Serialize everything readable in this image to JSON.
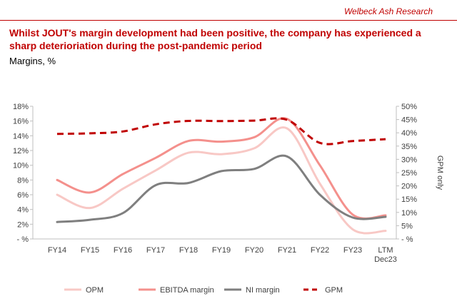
{
  "header": {
    "brand": "Welbeck Ash Research"
  },
  "headline": "Whilst JOUT's margin development had been positive, the company has experienced a sharp deterioriation during the post-pandemic period",
  "subheading": "Margins, %",
  "chart_data": {
    "type": "line",
    "title": "",
    "xlabel": "",
    "ylabel": "",
    "y2label": "GPM only",
    "categories": [
      "FY14",
      "FY15",
      "FY16",
      "FY17",
      "FY18",
      "FY19",
      "FY20",
      "FY21",
      "FY22",
      "FY23",
      "LTM Dec23"
    ],
    "ylim": [
      0,
      18
    ],
    "y2lim": [
      0,
      50
    ],
    "y_ticks": [
      0,
      2,
      4,
      6,
      8,
      10,
      12,
      14,
      16,
      18
    ],
    "y_tick_labels": [
      "- %",
      "2%",
      "4%",
      "6%",
      "8%",
      "10%",
      "12%",
      "14%",
      "16%",
      "18%"
    ],
    "y2_ticks": [
      0,
      5,
      10,
      15,
      20,
      25,
      30,
      35,
      40,
      45,
      50
    ],
    "y2_tick_labels": [
      "- %",
      "5%",
      "10%",
      "15%",
      "20%",
      "25%",
      "30%",
      "35%",
      "40%",
      "45%",
      "50%"
    ],
    "grid": false,
    "legend_position": "bottom",
    "series": [
      {
        "name": "OPM",
        "axis": "left",
        "color": "#f8c8c5",
        "style": "solid",
        "values": [
          6.0,
          4.2,
          6.8,
          9.3,
          11.7,
          11.5,
          12.3,
          15.0,
          7.5,
          1.3,
          1.1
        ]
      },
      {
        "name": "EBITDA margin",
        "axis": "left",
        "color": "#f4908c",
        "style": "solid",
        "values": [
          8.0,
          6.3,
          8.8,
          11.0,
          13.3,
          13.2,
          13.8,
          16.3,
          10.0,
          3.3,
          3.2
        ]
      },
      {
        "name": "NI margin",
        "axis": "left",
        "color": "#7f7f7f",
        "style": "solid",
        "values": [
          2.3,
          2.6,
          3.5,
          7.3,
          7.6,
          9.2,
          9.5,
          11.2,
          6.0,
          2.9,
          3.0
        ]
      },
      {
        "name": "GPM",
        "axis": "right",
        "color": "#c00000",
        "style": "dashed",
        "values": [
          39.6,
          39.8,
          40.5,
          43.2,
          44.5,
          44.4,
          44.6,
          44.9,
          36.2,
          36.9,
          37.6
        ]
      }
    ]
  }
}
